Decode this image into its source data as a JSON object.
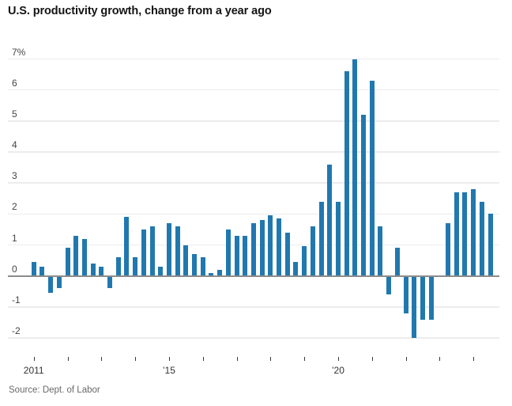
{
  "chart_data": {
    "type": "bar",
    "title": "U.S. productivity growth, change from a year ago",
    "source": "Source: Dept. of Labor",
    "unit": "percent, year-over-year change",
    "xlabel": "",
    "ylabel": "",
    "ylim": [
      -2.6,
      7.4
    ],
    "grid": "horizontal",
    "grid_values": [
      7,
      6,
      5,
      4,
      3,
      2,
      1,
      0,
      -1,
      -2
    ],
    "y_tick_labels": [
      "7%",
      "6",
      "5",
      "4",
      "3",
      "2",
      "1",
      "0",
      "-1",
      "-2"
    ],
    "x_axis_years": [
      2011,
      2012,
      2013,
      2014,
      2015,
      2016,
      2017,
      2018,
      2019,
      2020,
      2021,
      2022,
      2023,
      2024
    ],
    "x_tick_labels_visible": [
      {
        "year": 2011,
        "label": "2011"
      },
      {
        "year": 2015,
        "label": "’15"
      },
      {
        "year": 2020,
        "label": "’20"
      }
    ],
    "x": [
      "2011 Q1",
      "2011 Q2",
      "2011 Q3",
      "2011 Q4",
      "2012 Q1",
      "2012 Q2",
      "2012 Q3",
      "2012 Q4",
      "2013 Q1",
      "2013 Q2",
      "2013 Q3",
      "2013 Q4",
      "2014 Q1",
      "2014 Q2",
      "2014 Q3",
      "2014 Q4",
      "2015 Q1",
      "2015 Q2",
      "2015 Q3",
      "2015 Q4",
      "2016 Q1",
      "2016 Q2",
      "2016 Q3",
      "2016 Q4",
      "2017 Q1",
      "2017 Q2",
      "2017 Q3",
      "2017 Q4",
      "2018 Q1",
      "2018 Q2",
      "2018 Q3",
      "2018 Q4",
      "2019 Q1",
      "2019 Q2",
      "2019 Q3",
      "2019 Q4",
      "2020 Q1",
      "2020 Q2",
      "2020 Q3",
      "2020 Q4",
      "2021 Q1",
      "2021 Q2",
      "2021 Q3",
      "2021 Q4",
      "2022 Q1",
      "2022 Q2",
      "2022 Q3",
      "2022 Q4",
      "2023 Q1",
      "2023 Q2",
      "2023 Q3",
      "2023 Q4",
      "2024 Q1",
      "2024 Q2",
      "2024 Q3"
    ],
    "values": [
      0.45,
      0.3,
      -0.55,
      -0.4,
      0.9,
      1.3,
      1.2,
      0.4,
      0.3,
      -0.4,
      0.6,
      1.9,
      0.6,
      1.5,
      1.6,
      0.3,
      1.7,
      1.6,
      1.0,
      0.7,
      0.6,
      0.1,
      0.2,
      1.5,
      1.3,
      1.3,
      1.7,
      1.8,
      1.95,
      1.85,
      1.4,
      0.45,
      0.95,
      1.6,
      2.4,
      3.6,
      2.4,
      6.6,
      7.0,
      5.2,
      6.3,
      1.6,
      -0.6,
      0.9,
      -1.2,
      -2.0,
      -1.4,
      -1.4,
      0.0,
      1.7,
      2.7,
      2.7,
      2.8,
      2.4,
      2.0
    ],
    "legend": "none"
  },
  "colors": {
    "bar": "#2178af",
    "gridline": "#ececec",
    "zero_line": "#8c8c8c",
    "title_text": "#141414",
    "y_label_text": "#454545",
    "x_label_text": "#333333",
    "source_text": "#696969",
    "background": "#ffffff"
  }
}
